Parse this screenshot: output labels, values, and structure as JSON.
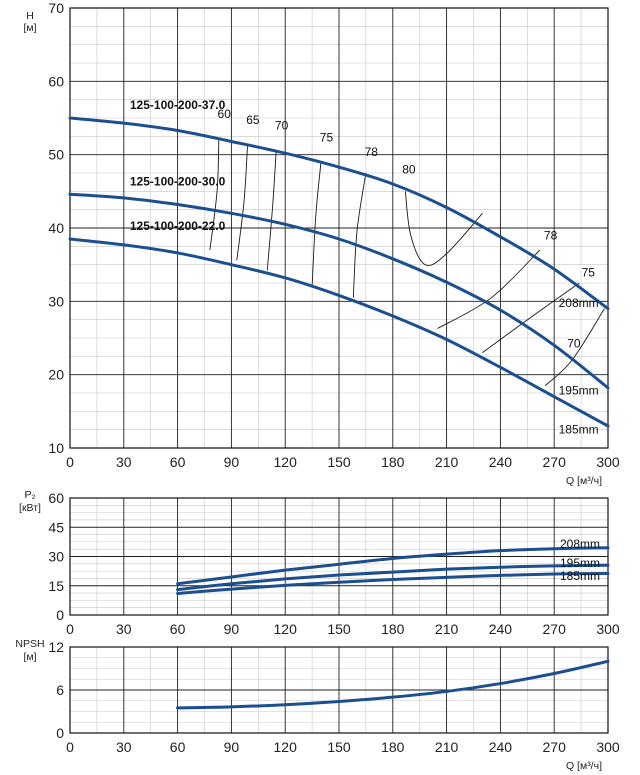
{
  "chart_data": [
    {
      "type": "line",
      "ylabel": "H",
      "yunit": "[м]",
      "xlabel": "Q",
      "xunit": "[м³/ч]",
      "xlim": [
        0,
        300
      ],
      "ylim": [
        10,
        70
      ],
      "xticks": [
        0,
        30,
        60,
        90,
        120,
        150,
        180,
        210,
        240,
        270,
        300
      ],
      "yticks": [
        10,
        20,
        30,
        40,
        50,
        60,
        70
      ],
      "grid": true,
      "series": [
        {
          "name": "125-100-200-37.0",
          "diameter": "208mm",
          "x": [
            0,
            30,
            60,
            90,
            120,
            150,
            180,
            210,
            240,
            270,
            300
          ],
          "y": [
            55,
            54.3,
            53.3,
            51.8,
            50.2,
            48.3,
            46,
            42.8,
            38.8,
            34.4,
            29
          ]
        },
        {
          "name": "125-100-200-30.0",
          "diameter": "195mm",
          "x": [
            0,
            30,
            60,
            90,
            120,
            150,
            180,
            210,
            240,
            270,
            300
          ],
          "y": [
            44.6,
            44.1,
            43.2,
            42,
            40.5,
            38.5,
            35.8,
            32.6,
            28.8,
            24,
            18.2
          ]
        },
        {
          "name": "125-100-200-22.0",
          "diameter": "185mm",
          "x": [
            0,
            30,
            60,
            90,
            120,
            150,
            180,
            210,
            240,
            270,
            300
          ],
          "y": [
            38.5,
            37.7,
            36.6,
            35,
            33.2,
            30.8,
            28,
            24.8,
            21,
            17,
            13
          ]
        }
      ],
      "efficiency_lines": [
        {
          "label": "60",
          "points": [
            [
              83,
              52.0
            ],
            [
              82,
              45.0
            ],
            [
              78,
              37.0
            ]
          ]
        },
        {
          "label": "65",
          "points": [
            [
              99,
              51.3
            ],
            [
              97,
              43.5
            ],
            [
              93,
              35.6
            ]
          ]
        },
        {
          "label": "70",
          "points": [
            [
              115,
              50.6
            ],
            [
              113,
              43.0
            ],
            [
              110,
              34.2
            ]
          ]
        },
        {
          "label": "75",
          "points": [
            [
              140,
              49.1
            ],
            [
              137,
              41.5
            ],
            [
              135,
              32.0
            ]
          ]
        },
        {
          "label": "78",
          "points": [
            [
              165,
              47.5
            ],
            [
              160,
              39.5
            ],
            [
              158,
              30.5
            ]
          ]
        },
        {
          "label": "80",
          "points": [
            [
              187,
              45.0
            ],
            [
              190,
              39.0
            ],
            [
              198,
              35.0
            ],
            [
              210,
              36.5
            ],
            [
              230,
              42.0
            ]
          ]
        },
        {
          "label": "78",
          "points": [
            [
              205,
              26.3
            ],
            [
              235,
              30.5
            ],
            [
              262,
              37.0
            ]
          ]
        },
        {
          "label": "75",
          "points": [
            [
              230,
              23.0
            ],
            [
              258,
              28.0
            ],
            [
              284,
              32.5
            ]
          ]
        },
        {
          "label": "70",
          "points": [
            [
              265,
              18.5
            ],
            [
              280,
              22.0
            ],
            [
              298,
              29.0
            ]
          ]
        }
      ],
      "efficiency_label_positions": [
        [
          86,
          55
        ],
        [
          102,
          54.2
        ],
        [
          118,
          53.4
        ],
        [
          143,
          51.8
        ],
        [
          168,
          49.8
        ],
        [
          189,
          47.4
        ],
        [
          268,
          38.4
        ],
        [
          289,
          33.4
        ],
        [
          281,
          23.7
        ]
      ],
      "diameter_labels": [
        "208mm",
        "195mm",
        "185mm"
      ]
    },
    {
      "type": "line",
      "ylabel": "P₂",
      "yunit": "[кВт]",
      "xlim": [
        0,
        300
      ],
      "ylim": [
        0,
        60
      ],
      "xticks": [
        0,
        30,
        60,
        90,
        120,
        150,
        180,
        210,
        240,
        270,
        300
      ],
      "yticks": [
        0,
        15,
        30,
        45,
        60
      ],
      "grid": true,
      "series": [
        {
          "name": "208mm",
          "x": [
            60,
            90,
            120,
            150,
            180,
            210,
            240,
            270,
            300
          ],
          "y": [
            16,
            19.5,
            23,
            26,
            29,
            31.2,
            33,
            34,
            34.5
          ]
        },
        {
          "name": "195mm",
          "x": [
            60,
            90,
            120,
            150,
            180,
            210,
            240,
            270,
            300
          ],
          "y": [
            13,
            16,
            18.5,
            20.5,
            22,
            23.5,
            24.5,
            25.2,
            25.5
          ]
        },
        {
          "name": "185mm",
          "x": [
            60,
            90,
            120,
            150,
            180,
            210,
            240,
            270,
            300
          ],
          "y": [
            11,
            13.3,
            15.2,
            16.8,
            18.2,
            19.3,
            20.3,
            21,
            21.3
          ]
        }
      ]
    },
    {
      "type": "line",
      "ylabel": "NPSH",
      "yunit": "[м]",
      "xlabel": "Q",
      "xunit": "[м³/ч]",
      "xlim": [
        0,
        300
      ],
      "ylim": [
        0,
        12
      ],
      "xticks": [
        0,
        30,
        60,
        90,
        120,
        150,
        180,
        210,
        240,
        270,
        300
      ],
      "yticks": [
        0,
        6,
        12
      ],
      "grid": true,
      "series": [
        {
          "x": [
            60,
            90,
            120,
            150,
            180,
            210,
            240,
            270,
            300
          ],
          "y": [
            3.5,
            3.65,
            3.95,
            4.4,
            5.0,
            5.8,
            6.9,
            8.3,
            10.0
          ]
        }
      ]
    }
  ]
}
